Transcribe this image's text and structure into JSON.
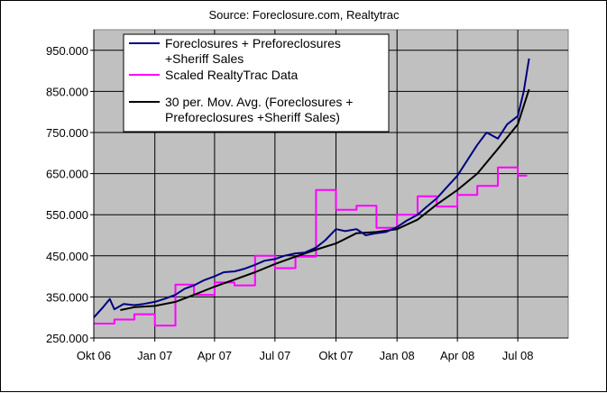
{
  "chart_data": {
    "type": "line",
    "title": "Source: Foreclosure.com, Realtytrac",
    "xlabel": "",
    "ylabel": "",
    "ylim": [
      250000,
      1000000
    ],
    "y_ticks": [
      250000,
      350000,
      450000,
      550000,
      650000,
      750000,
      850000,
      950000
    ],
    "y_tick_labels": [
      "250.000",
      "350.000",
      "450.000",
      "550.000",
      "650.000",
      "750.000",
      "850.000",
      "950.000"
    ],
    "x_range": [
      "2006-10-01",
      "2008-09-15"
    ],
    "x_ticks": [
      "2006-10-01",
      "2007-01-01",
      "2007-04-01",
      "2007-07-01",
      "2007-10-01",
      "2008-01-01",
      "2008-04-01",
      "2008-07-01"
    ],
    "x_tick_labels": [
      "Okt 06",
      "Jan 07",
      "Apr 07",
      "Jul 07",
      "Okt 07",
      "Jan 08",
      "Apr 08",
      "Jul 08"
    ],
    "grid": true,
    "background": "#c0c0c0",
    "legend_position": "top-left",
    "series": [
      {
        "name": "Foreclosures + Preforeclosures +Sheriff Sales",
        "legend_lines": [
          "Foreclosures + Preforeclosures",
          "+Sheriff Sales"
        ],
        "color": "#000080",
        "style": "line",
        "x": [
          "2006-10-01",
          "2006-10-15",
          "2006-10-25",
          "2006-11-01",
          "2006-11-15",
          "2006-12-01",
          "2006-12-15",
          "2007-01-01",
          "2007-01-15",
          "2007-02-01",
          "2007-02-15",
          "2007-03-01",
          "2007-03-15",
          "2007-04-01",
          "2007-04-15",
          "2007-05-01",
          "2007-05-15",
          "2007-06-01",
          "2007-06-15",
          "2007-07-01",
          "2007-07-15",
          "2007-08-01",
          "2007-08-15",
          "2007-09-01",
          "2007-09-15",
          "2007-10-01",
          "2007-10-15",
          "2007-11-01",
          "2007-11-15",
          "2007-12-01",
          "2007-12-15",
          "2008-01-01",
          "2008-01-15",
          "2008-02-01",
          "2008-02-15",
          "2008-03-01",
          "2008-03-15",
          "2008-04-01",
          "2008-04-15",
          "2008-05-01",
          "2008-05-15",
          "2008-06-01",
          "2008-06-15",
          "2008-07-01",
          "2008-07-10",
          "2008-07-18"
        ],
        "values": [
          300000,
          325000,
          345000,
          320000,
          333000,
          330000,
          333000,
          338000,
          345000,
          355000,
          370000,
          378000,
          390000,
          400000,
          410000,
          412000,
          418000,
          428000,
          438000,
          442000,
          450000,
          456000,
          458000,
          470000,
          488000,
          515000,
          510000,
          515000,
          500000,
          505000,
          508000,
          520000,
          535000,
          550000,
          570000,
          590000,
          615000,
          645000,
          680000,
          720000,
          750000,
          735000,
          770000,
          790000,
          850000,
          930000
        ]
      },
      {
        "name": "Scaled RealtyTrac Data",
        "legend_lines": [
          "Scaled RealtyTrac Data"
        ],
        "color": "#ff00ff",
        "style": "step",
        "x": [
          "2006-10-01",
          "2006-11-01",
          "2006-12-01",
          "2007-01-01",
          "2007-02-01",
          "2007-03-01",
          "2007-04-01",
          "2007-05-01",
          "2007-06-01",
          "2007-07-01",
          "2007-08-01",
          "2007-09-01",
          "2007-10-01",
          "2007-11-01",
          "2007-12-01",
          "2008-01-01",
          "2008-02-01",
          "2008-03-01",
          "2008-04-01",
          "2008-05-01",
          "2008-06-01",
          "2008-07-01",
          "2008-07-15"
        ],
        "values": [
          285000,
          295000,
          308000,
          280000,
          380000,
          355000,
          385000,
          378000,
          450000,
          420000,
          448000,
          610000,
          562000,
          572000,
          518000,
          550000,
          595000,
          570000,
          598000,
          620000,
          665000,
          645000,
          645000
        ]
      },
      {
        "name": "30 per. Mov. Avg. (Foreclosures + Preforeclosures +Sheriff Sales)",
        "legend_lines": [
          "30 per. Mov. Avg. (Foreclosures +",
          "Preforeclosures +Sheriff Sales)"
        ],
        "color": "#000000",
        "style": "line",
        "x": [
          "2006-11-10",
          "2006-12-01",
          "2007-01-01",
          "2007-02-01",
          "2007-03-01",
          "2007-04-01",
          "2007-05-01",
          "2007-06-01",
          "2007-07-01",
          "2007-08-01",
          "2007-09-01",
          "2007-10-01",
          "2007-11-01",
          "2007-12-01",
          "2008-01-01",
          "2008-02-01",
          "2008-03-01",
          "2008-04-01",
          "2008-05-01",
          "2008-06-01",
          "2008-07-01",
          "2008-07-18"
        ],
        "values": [
          318000,
          325000,
          328000,
          338000,
          355000,
          375000,
          392000,
          410000,
          430000,
          448000,
          465000,
          480000,
          505000,
          508000,
          515000,
          538000,
          575000,
          610000,
          650000,
          710000,
          770000,
          855000
        ]
      }
    ]
  }
}
